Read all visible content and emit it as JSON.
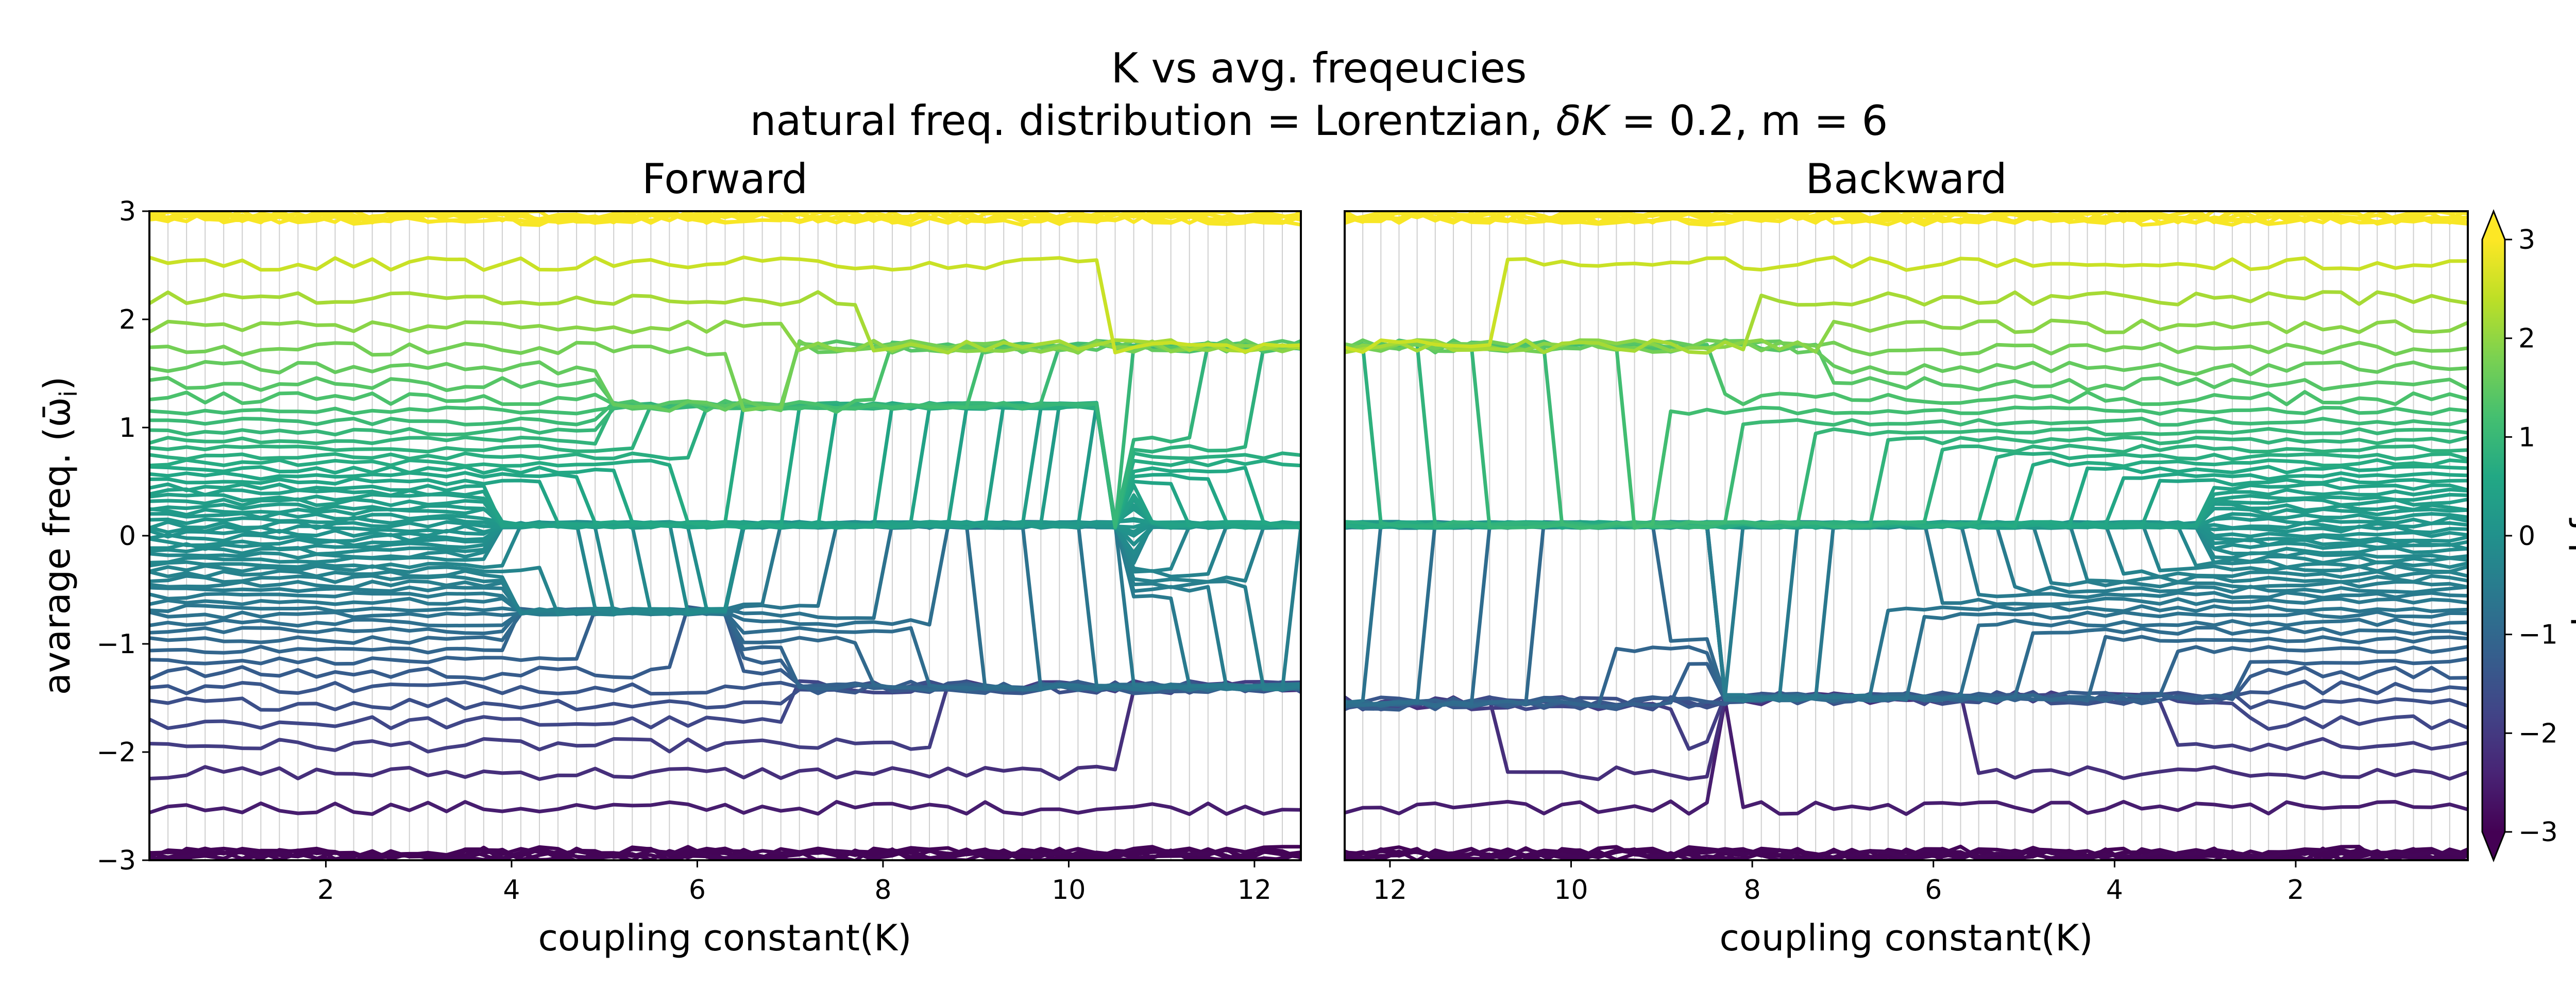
{
  "title_line1": "K vs avg. freqeucies",
  "title_line2_prefix": "natural freq. distribution = Lorentzian, ",
  "title_line2_math": "δK",
  "title_line2_suffix": " = 0.2, m = 6",
  "colorbar_label": "natural freq. ω",
  "colorbar_label_sub": "i",
  "colormap": [
    "#440154",
    "#482475",
    "#414487",
    "#355f8d",
    "#2a788e",
    "#21918c",
    "#22a884",
    "#44bf70",
    "#7ad151",
    "#bddf26",
    "#fde725"
  ],
  "colorbar_range": [
    -3,
    3
  ],
  "colorbar_ticks": [
    "3",
    "2",
    "1",
    "0",
    "−1",
    "−2",
    "−3"
  ],
  "chart_data": [
    {
      "type": "line",
      "panel_title": "Forward",
      "xlabel": "coupling constant(K)",
      "ylabel": "avarage freq. (ω̄",
      "ylabel_sub": "i",
      "ylabel_close": ")",
      "xlim": [
        0.1,
        12.5
      ],
      "x_direction": "increasing",
      "ylim": [
        -3,
        3
      ],
      "xticks": [
        "2",
        "4",
        "6",
        "8",
        "10",
        "12"
      ],
      "yticks": [
        "−3",
        "−2",
        "−1",
        "0",
        "1",
        "2",
        "3"
      ],
      "grid": "vertical lines at each K step",
      "sync_bands": [
        {
          "K_start": 3.9,
          "K_end": 10.5,
          "value": 0.1
        },
        {
          "K_start": 5.0,
          "K_end": 10.3,
          "value": 1.2
        },
        {
          "K_start": 4.0,
          "K_end": 6.5,
          "value": -0.7
        },
        {
          "K_start": 7.0,
          "K_end": 12.5,
          "value": -1.4
        },
        {
          "K_start": 7.0,
          "K_end": 12.5,
          "value": 1.75
        },
        {
          "K_start": 10.7,
          "K_end": 12.5,
          "value": 0.1
        }
      ]
    },
    {
      "type": "line",
      "panel_title": "Backward",
      "xlabel": "coupling constant(K)",
      "xlim": [
        12.5,
        0.1
      ],
      "x_direction": "decreasing",
      "ylim": [
        -3,
        3
      ],
      "xticks": [
        "12",
        "10",
        "8",
        "6",
        "4",
        "2"
      ],
      "grid": "vertical lines at each K step",
      "sync_bands": [
        {
          "K_start": 12.5,
          "K_end": 3.1,
          "value": 0.1
        },
        {
          "K_start": 12.5,
          "K_end": 7.3,
          "value": 1.75
        },
        {
          "K_start": 12.5,
          "K_end": 8.4,
          "value": -1.55
        },
        {
          "K_start": 8.4,
          "K_end": 2.7,
          "value": -1.5
        }
      ]
    }
  ]
}
